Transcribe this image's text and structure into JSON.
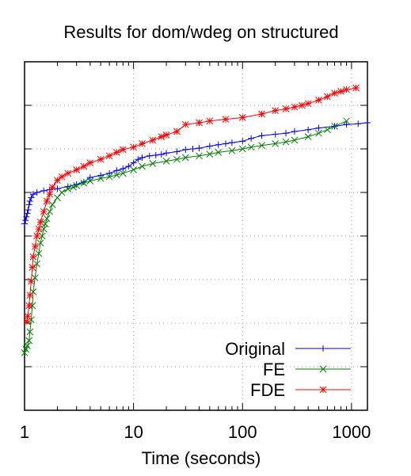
{
  "chart_data": {
    "type": "line",
    "title": "Results for dom/wdeg on structured",
    "xlabel": "Time (seconds)",
    "ylabel": "",
    "xscale": "log",
    "xlim": [
      1,
      1400
    ],
    "ylim": [
      0,
      1
    ],
    "x_ticks": [
      1,
      10,
      100,
      1000
    ],
    "x_tick_labels": [
      "1",
      "10",
      "100",
      "1000"
    ],
    "y_ticks": [
      0,
      0.125,
      0.25,
      0.375,
      0.5,
      0.625,
      0.75,
      0.875,
      1
    ],
    "grid": true,
    "legend_position": "bottom-right",
    "series": [
      {
        "name": "Original",
        "color": "#0000ff",
        "marker": "plus",
        "x": [
          1.0,
          1.02,
          1.04,
          1.06,
          1.08,
          1.1,
          1.12,
          1.15,
          1.2,
          1.3,
          1.5,
          1.7,
          2.0,
          2.5,
          3.0,
          3.5,
          4.0,
          5.0,
          6.0,
          7.0,
          8.0,
          9.0,
          10.0,
          11.0,
          12.0,
          14.0,
          16.0,
          18.0,
          20.0,
          25.0,
          30.0,
          35.0,
          40.0,
          50.0,
          60.0,
          70.0,
          80.0,
          100.0,
          120.0,
          150.0,
          200.0,
          250.0,
          300.0,
          400.0,
          500.0,
          700.0,
          900.0,
          1150.0,
          1400.0
        ],
        "y": [
          0.535,
          0.545,
          0.555,
          0.565,
          0.575,
          0.59,
          0.6,
          0.61,
          0.62,
          0.625,
          0.63,
          0.633,
          0.636,
          0.642,
          0.648,
          0.655,
          0.668,
          0.674,
          0.68,
          0.688,
          0.693,
          0.7,
          0.71,
          0.72,
          0.725,
          0.73,
          0.732,
          0.734,
          0.738,
          0.742,
          0.748,
          0.75,
          0.752,
          0.758,
          0.762,
          0.765,
          0.768,
          0.772,
          0.78,
          0.788,
          0.792,
          0.795,
          0.8,
          0.805,
          0.81,
          0.815,
          0.82,
          0.822,
          0.825
        ]
      },
      {
        "name": "FE",
        "color": "#008000",
        "marker": "cross",
        "x": [
          1.0,
          1.03,
          1.06,
          1.1,
          1.12,
          1.15,
          1.18,
          1.2,
          1.25,
          1.3,
          1.35,
          1.4,
          1.45,
          1.5,
          1.55,
          1.6,
          1.7,
          1.8,
          2.0,
          2.2,
          2.5,
          2.8,
          3.0,
          3.5,
          4.0,
          5.0,
          6.0,
          7.0,
          8.0,
          10.0,
          12.0,
          15.0,
          20.0,
          25.0,
          30.0,
          40.0,
          50.0,
          60.0,
          80.0,
          100.0,
          120.0,
          150.0,
          200.0,
          250.0,
          300.0,
          400.0,
          500.0,
          600.0,
          700.0,
          900.0
        ],
        "y": [
          0.165,
          0.175,
          0.185,
          0.2,
          0.225,
          0.26,
          0.3,
          0.34,
          0.38,
          0.42,
          0.45,
          0.48,
          0.5,
          0.52,
          0.535,
          0.55,
          0.57,
          0.59,
          0.61,
          0.625,
          0.635,
          0.64,
          0.645,
          0.652,
          0.658,
          0.665,
          0.67,
          0.675,
          0.68,
          0.69,
          0.7,
          0.708,
          0.715,
          0.72,
          0.725,
          0.73,
          0.735,
          0.74,
          0.745,
          0.75,
          0.755,
          0.76,
          0.765,
          0.77,
          0.775,
          0.785,
          0.795,
          0.805,
          0.815,
          0.83
        ]
      },
      {
        "name": "FDE",
        "color": "#ff0000",
        "marker": "star",
        "x": [
          1.05,
          1.07,
          1.1,
          1.12,
          1.15,
          1.18,
          1.2,
          1.25,
          1.3,
          1.35,
          1.4,
          1.5,
          1.6,
          1.7,
          1.8,
          2.0,
          2.2,
          2.5,
          3.0,
          3.5,
          4.0,
          5.0,
          6.0,
          7.0,
          8.0,
          10.0,
          12.0,
          15.0,
          18.0,
          20.0,
          25.0,
          30.0,
          40.0,
          50.0,
          70.0,
          100.0,
          150.0,
          200.0,
          250.0,
          300.0,
          350.0,
          400.0,
          500.0,
          600.0,
          700.0,
          800.0,
          900.0,
          1100.0
        ],
        "y": [
          0.255,
          0.27,
          0.3,
          0.33,
          0.37,
          0.41,
          0.44,
          0.47,
          0.5,
          0.52,
          0.54,
          0.57,
          0.6,
          0.62,
          0.64,
          0.66,
          0.67,
          0.68,
          0.69,
          0.7,
          0.71,
          0.72,
          0.73,
          0.74,
          0.748,
          0.755,
          0.765,
          0.775,
          0.785,
          0.79,
          0.8,
          0.82,
          0.825,
          0.83,
          0.835,
          0.84,
          0.85,
          0.86,
          0.865,
          0.87,
          0.875,
          0.88,
          0.89,
          0.9,
          0.91,
          0.915,
          0.92,
          0.925
        ]
      }
    ]
  }
}
